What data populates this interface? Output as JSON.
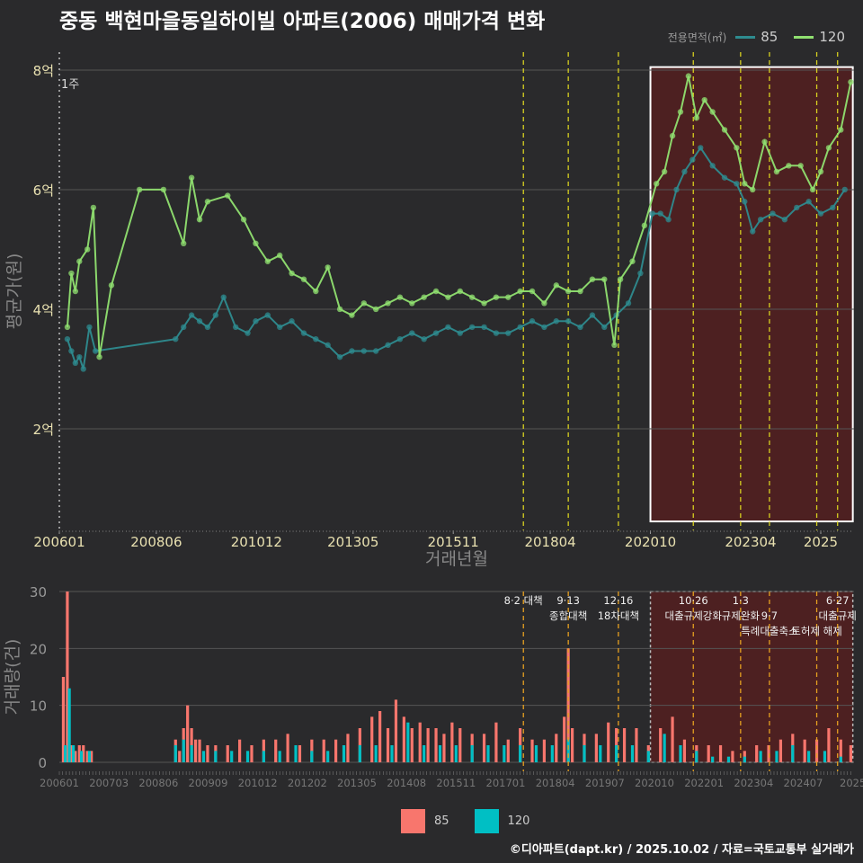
{
  "title": "중동 백현마을동일하이빌 아파트(2006) 매매가격 변화",
  "legend_top": {
    "title": "전용면적(㎡)",
    "items": [
      {
        "label": "85",
        "color": "#2e8b8f"
      },
      {
        "label": "120",
        "color": "#90e070"
      }
    ]
  },
  "legend_bottom": {
    "items": [
      {
        "label": "85",
        "color": "#f8766d"
      },
      {
        "label": "120",
        "color": "#00bfc4"
      }
    ]
  },
  "credit": "©디아파트(dapt.kr) / 2025.10.02 / 자료=국토교통부 실거래가",
  "chart_data": [
    {
      "type": "line",
      "title": "중동 백현마을동일하이빌 아파트(2006) 매매가격 변화",
      "xlabel": "거래년월",
      "ylabel": "평균가(원)",
      "ylim": [
        0.3,
        8.3
      ],
      "xlim": [
        2006.0,
        2025.83
      ],
      "yticks": [
        {
          "v": 2,
          "label": "2억"
        },
        {
          "v": 4,
          "label": "4억"
        },
        {
          "v": 6,
          "label": "6억"
        },
        {
          "v": 8,
          "label": "8억"
        }
      ],
      "xticks": [
        {
          "v": 2006.0,
          "label": "200601"
        },
        {
          "v": 2008.42,
          "label": "200806"
        },
        {
          "v": 2010.92,
          "label": "201012"
        },
        {
          "v": 2013.33,
          "label": "201305"
        },
        {
          "v": 2015.83,
          "label": "201511"
        },
        {
          "v": 2018.25,
          "label": "201804"
        },
        {
          "v": 2020.75,
          "label": "202010"
        },
        {
          "v": 2023.25,
          "label": "202304"
        },
        {
          "v": 2025.0,
          "label": "2025"
        }
      ],
      "policy_lines": [
        2017.58,
        2018.7,
        2019.95,
        2021.82,
        2023.0,
        2023.72,
        2024.9,
        2025.42
      ],
      "note_label": "1주",
      "highlight_x": [
        2020.75,
        2025.8
      ],
      "highlight_y": [
        0.45,
        8.05
      ],
      "series": [
        {
          "name": "85",
          "color": "#2e8b8f",
          "x": [
            2006.2,
            2006.3,
            2006.4,
            2006.5,
            2006.6,
            2006.75,
            2006.9,
            2008.9,
            2009.1,
            2009.3,
            2009.5,
            2009.7,
            2009.9,
            2010.1,
            2010.4,
            2010.7,
            2010.9,
            2011.2,
            2011.5,
            2011.8,
            2012.1,
            2012.4,
            2012.7,
            2013.0,
            2013.3,
            2013.6,
            2013.9,
            2014.2,
            2014.5,
            2014.8,
            2015.1,
            2015.4,
            2015.7,
            2016.0,
            2016.3,
            2016.6,
            2016.9,
            2017.2,
            2017.5,
            2017.8,
            2018.1,
            2018.4,
            2018.7,
            2019.0,
            2019.3,
            2019.6,
            2019.9,
            2020.2,
            2020.5,
            2020.8,
            2021.0,
            2021.2,
            2021.4,
            2021.6,
            2021.8,
            2022.0,
            2022.3,
            2022.6,
            2022.9,
            2023.1,
            2023.3,
            2023.5,
            2023.8,
            2024.1,
            2024.4,
            2024.7,
            2025.0,
            2025.3,
            2025.6
          ],
          "y": [
            3.5,
            3.3,
            3.1,
            3.2,
            3.0,
            3.7,
            3.3,
            3.5,
            3.7,
            3.9,
            3.8,
            3.7,
            3.9,
            4.2,
            3.7,
            3.6,
            3.8,
            3.9,
            3.7,
            3.8,
            3.6,
            3.5,
            3.4,
            3.2,
            3.3,
            3.3,
            3.3,
            3.4,
            3.5,
            3.6,
            3.5,
            3.6,
            3.7,
            3.6,
            3.7,
            3.7,
            3.6,
            3.6,
            3.7,
            3.8,
            3.7,
            3.8,
            3.8,
            3.7,
            3.9,
            3.7,
            3.9,
            4.1,
            4.6,
            5.6,
            5.6,
            5.5,
            6.0,
            6.3,
            6.5,
            6.7,
            6.4,
            6.2,
            6.1,
            5.8,
            5.3,
            5.5,
            5.6,
            5.5,
            5.7,
            5.8,
            5.6,
            5.7,
            6.0
          ]
        },
        {
          "name": "120",
          "color": "#90e070",
          "x": [
            2006.2,
            2006.3,
            2006.4,
            2006.5,
            2006.7,
            2006.85,
            2007.0,
            2007.3,
            2008.0,
            2008.6,
            2009.1,
            2009.3,
            2009.5,
            2009.7,
            2010.2,
            2010.6,
            2010.9,
            2011.2,
            2011.5,
            2011.8,
            2012.1,
            2012.4,
            2012.7,
            2013.0,
            2013.3,
            2013.6,
            2013.9,
            2014.2,
            2014.5,
            2014.8,
            2015.1,
            2015.4,
            2015.7,
            2016.0,
            2016.3,
            2016.6,
            2016.9,
            2017.2,
            2017.5,
            2017.8,
            2018.1,
            2018.4,
            2018.7,
            2019.0,
            2019.3,
            2019.6,
            2019.85,
            2020.0,
            2020.3,
            2020.6,
            2020.9,
            2021.1,
            2021.3,
            2021.5,
            2021.7,
            2021.9,
            2022.1,
            2022.3,
            2022.6,
            2022.9,
            2023.1,
            2023.3,
            2023.6,
            2023.9,
            2024.2,
            2024.5,
            2024.8,
            2025.0,
            2025.2,
            2025.5,
            2025.75
          ],
          "y": [
            3.7,
            4.6,
            4.3,
            4.8,
            5.0,
            5.7,
            3.2,
            4.4,
            6.0,
            6.0,
            5.1,
            6.2,
            5.5,
            5.8,
            5.9,
            5.5,
            5.1,
            4.8,
            4.9,
            4.6,
            4.5,
            4.3,
            4.7,
            4.0,
            3.9,
            4.1,
            4.0,
            4.1,
            4.2,
            4.1,
            4.2,
            4.3,
            4.2,
            4.3,
            4.2,
            4.1,
            4.2,
            4.2,
            4.3,
            4.3,
            4.1,
            4.4,
            4.3,
            4.3,
            4.5,
            4.5,
            3.4,
            4.5,
            4.8,
            5.4,
            6.1,
            6.3,
            6.9,
            7.3,
            7.9,
            7.2,
            7.5,
            7.3,
            7.0,
            6.7,
            6.1,
            6.0,
            6.8,
            6.3,
            6.4,
            6.4,
            6.0,
            6.3,
            6.7,
            7.0,
            7.8
          ]
        }
      ]
    },
    {
      "type": "bar",
      "ylabel": "거래량(건)",
      "ylim": [
        0,
        30
      ],
      "yticks": [
        0,
        10,
        20,
        30
      ],
      "xticks": [
        "200601",
        "200703",
        "200806",
        "200909",
        "201012",
        "201202",
        "201305",
        "201408",
        "201511",
        "201701",
        "201804",
        "201907",
        "202010",
        "202201",
        "202304",
        "202407",
        "2025"
      ],
      "xlim": [
        2006.0,
        2025.83
      ],
      "highlight_x": [
        2020.75,
        2025.8
      ],
      "annotations": [
        {
          "x": 2017.58,
          "lines": [
            "8·2 대책"
          ]
        },
        {
          "x": 2018.7,
          "lines": [
            "9·13",
            "종합대책"
          ]
        },
        {
          "x": 2019.95,
          "lines": [
            "12·16",
            "18차대책"
          ]
        },
        {
          "x": 2021.82,
          "lines": [
            "10·26",
            "대출규제강화"
          ]
        },
        {
          "x": 2023.0,
          "lines": [
            "1·3",
            "규제완화"
          ]
        },
        {
          "x": 2023.72,
          "lines": [
            "",
            "9·7",
            "특례대출축소"
          ]
        },
        {
          "x": 2024.9,
          "lines": [
            "",
            "",
            "토허제 해제"
          ]
        },
        {
          "x": 2025.42,
          "lines": [
            "6·27",
            "대출규제"
          ]
        }
      ],
      "series": [
        {
          "name": "85",
          "color": "#f8766d",
          "x": [
            2006.1,
            2006.2,
            2006.3,
            2006.4,
            2006.5,
            2006.6,
            2006.7,
            2006.8,
            2008.9,
            2009.0,
            2009.1,
            2009.2,
            2009.3,
            2009.4,
            2009.5,
            2009.7,
            2009.9,
            2010.2,
            2010.5,
            2010.8,
            2011.1,
            2011.4,
            2011.7,
            2012.0,
            2012.3,
            2012.6,
            2012.9,
            2013.2,
            2013.5,
            2013.8,
            2014.0,
            2014.2,
            2014.4,
            2014.6,
            2014.8,
            2015.0,
            2015.2,
            2015.4,
            2015.6,
            2015.8,
            2016.0,
            2016.3,
            2016.6,
            2016.9,
            2017.2,
            2017.5,
            2017.8,
            2018.1,
            2018.4,
            2018.6,
            2018.7,
            2018.8,
            2019.1,
            2019.4,
            2019.7,
            2019.9,
            2020.1,
            2020.4,
            2020.7,
            2021.0,
            2021.3,
            2021.6,
            2021.9,
            2022.2,
            2022.5,
            2022.8,
            2023.1,
            2023.4,
            2023.7,
            2024.0,
            2024.3,
            2024.6,
            2024.9,
            2025.2,
            2025.5,
            2025.75
          ],
          "y": [
            15,
            30,
            3,
            2,
            3,
            3,
            2,
            2,
            4,
            2,
            6,
            10,
            6,
            4,
            4,
            3,
            3,
            3,
            4,
            3,
            4,
            4,
            5,
            3,
            4,
            4,
            4,
            5,
            6,
            8,
            9,
            6,
            11,
            8,
            6,
            7,
            6,
            6,
            5,
            7,
            6,
            5,
            5,
            7,
            4,
            6,
            4,
            4,
            5,
            8,
            20,
            6,
            5,
            5,
            7,
            6,
            6,
            6,
            3,
            6,
            8,
            4,
            3,
            3,
            3,
            2,
            2,
            3,
            3,
            4,
            5,
            4,
            4,
            6,
            4,
            3
          ]
        },
        {
          "name": "120",
          "color": "#00bfc4",
          "x": [
            2006.15,
            2006.25,
            2006.35,
            2006.55,
            2006.75,
            2008.9,
            2009.1,
            2009.3,
            2009.6,
            2009.9,
            2010.3,
            2010.7,
            2011.1,
            2011.5,
            2011.9,
            2012.3,
            2012.7,
            2013.1,
            2013.5,
            2013.9,
            2014.3,
            2014.7,
            2015.1,
            2015.5,
            2015.9,
            2016.3,
            2016.7,
            2017.1,
            2017.5,
            2017.9,
            2018.3,
            2018.7,
            2019.1,
            2019.5,
            2019.9,
            2020.3,
            2020.7,
            2021.1,
            2021.5,
            2021.9,
            2022.3,
            2022.7,
            2023.1,
            2023.5,
            2023.9,
            2024.3,
            2024.7,
            2025.1,
            2025.5
          ],
          "y": [
            3,
            13,
            3,
            2,
            2,
            3,
            4,
            3,
            2,
            2,
            2,
            2,
            2,
            2,
            3,
            2,
            2,
            3,
            3,
            3,
            3,
            7,
            3,
            3,
            3,
            3,
            3,
            3,
            3,
            3,
            3,
            4,
            3,
            3,
            3,
            3,
            2,
            5,
            3,
            2,
            1,
            1,
            1,
            2,
            2,
            3,
            2,
            2,
            1
          ]
        }
      ]
    }
  ]
}
